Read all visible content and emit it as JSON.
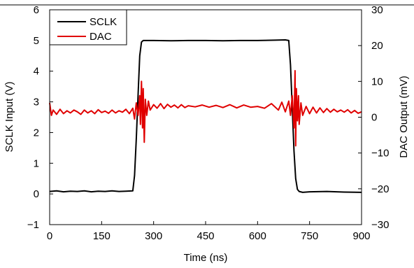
{
  "chart_data": {
    "type": "line",
    "xlabel": "Time (ns)",
    "ylabel_left": "SCLK Input (V)",
    "ylabel_right": "DAC Output (mV)",
    "xlim": [
      0,
      900
    ],
    "ylim_left": [
      -1,
      6
    ],
    "ylim_right": [
      -30,
      30
    ],
    "xticks": [
      0,
      150,
      300,
      450,
      600,
      750,
      900
    ],
    "xtick_labels": [
      "0",
      "150",
      "300",
      "450",
      "600",
      "750",
      "900"
    ],
    "yticks_left": [
      -1,
      0,
      1,
      2,
      3,
      4,
      5,
      6
    ],
    "ytick_labels_left": [
      "−1",
      "0",
      "1",
      "2",
      "3",
      "4",
      "5",
      "6"
    ],
    "yticks_right": [
      -30,
      -20,
      -10,
      0,
      10,
      20,
      30
    ],
    "ytick_labels_right": [
      "−30",
      "−20",
      "−10",
      "0",
      "10",
      "20",
      "30"
    ],
    "grid": "none",
    "legend": "top-left",
    "series": [
      {
        "name": "SCLK",
        "axis": "left",
        "color": "#000000",
        "x": [
          0,
          20,
          40,
          60,
          80,
          100,
          120,
          140,
          160,
          180,
          200,
          220,
          240,
          245,
          250,
          255,
          260,
          265,
          270,
          280,
          300,
          350,
          400,
          450,
          500,
          550,
          600,
          650,
          680,
          690,
          695,
          700,
          705,
          710,
          715,
          720,
          730,
          750,
          800,
          850,
          900
        ],
        "y": [
          0.08,
          0.1,
          0.07,
          0.09,
          0.08,
          0.1,
          0.07,
          0.09,
          0.08,
          0.1,
          0.08,
          0.09,
          0.1,
          0.6,
          1.8,
          3.2,
          4.5,
          4.95,
          5.0,
          5.0,
          5.0,
          4.99,
          5.0,
          5.0,
          4.99,
          5.0,
          5.0,
          5.01,
          5.02,
          5.0,
          4.2,
          2.8,
          1.4,
          0.5,
          0.15,
          0.08,
          0.05,
          0.07,
          0.08,
          0.06,
          0.05
        ]
      },
      {
        "name": "DAC",
        "axis": "right",
        "color": "#e00000",
        "x": [
          0,
          5,
          10,
          20,
          30,
          40,
          50,
          60,
          70,
          80,
          90,
          100,
          110,
          120,
          130,
          140,
          150,
          160,
          170,
          180,
          190,
          200,
          210,
          220,
          230,
          240,
          245,
          250,
          255,
          260,
          262,
          265,
          268,
          270,
          273,
          276,
          280,
          285,
          290,
          300,
          310,
          320,
          330,
          340,
          350,
          360,
          370,
          380,
          390,
          400,
          420,
          440,
          460,
          480,
          500,
          520,
          540,
          560,
          580,
          600,
          620,
          640,
          660,
          670,
          680,
          690,
          695,
          700,
          705,
          708,
          710,
          712,
          715,
          718,
          720,
          725,
          730,
          740,
          750,
          760,
          770,
          780,
          790,
          800,
          810,
          820,
          830,
          840,
          850,
          860,
          870,
          880,
          890,
          900
        ],
        "y": [
          4.0,
          0.5,
          2.0,
          0.8,
          2.2,
          1.0,
          1.8,
          1.2,
          2.0,
          1.5,
          0.8,
          2.0,
          1.2,
          1.8,
          1.0,
          2.1,
          1.3,
          1.7,
          1.1,
          2.0,
          1.2,
          1.8,
          1.4,
          2.2,
          1.0,
          2.5,
          -0.5,
          4.0,
          0.5,
          6.0,
          -2.0,
          10.0,
          -3.0,
          8.0,
          -7.0,
          5.0,
          0.5,
          4.5,
          2.0,
          3.5,
          2.5,
          3.8,
          2.4,
          3.6,
          2.8,
          3.4,
          2.6,
          3.5,
          2.7,
          3.2,
          2.9,
          3.4,
          2.8,
          3.3,
          2.7,
          3.5,
          2.6,
          3.4,
          2.8,
          3.0,
          2.5,
          3.8,
          2.0,
          4.2,
          1.5,
          4.5,
          0.5,
          6.0,
          -3.0,
          13.0,
          -8.0,
          8.0,
          -1.0,
          6.0,
          -2.0,
          4.0,
          0.5,
          3.0,
          1.0,
          2.8,
          1.2,
          2.6,
          1.3,
          2.4,
          1.4,
          2.2,
          1.5,
          2.0,
          1.4,
          2.1,
          1.2,
          1.9,
          1.1,
          1.5
        ]
      }
    ]
  }
}
